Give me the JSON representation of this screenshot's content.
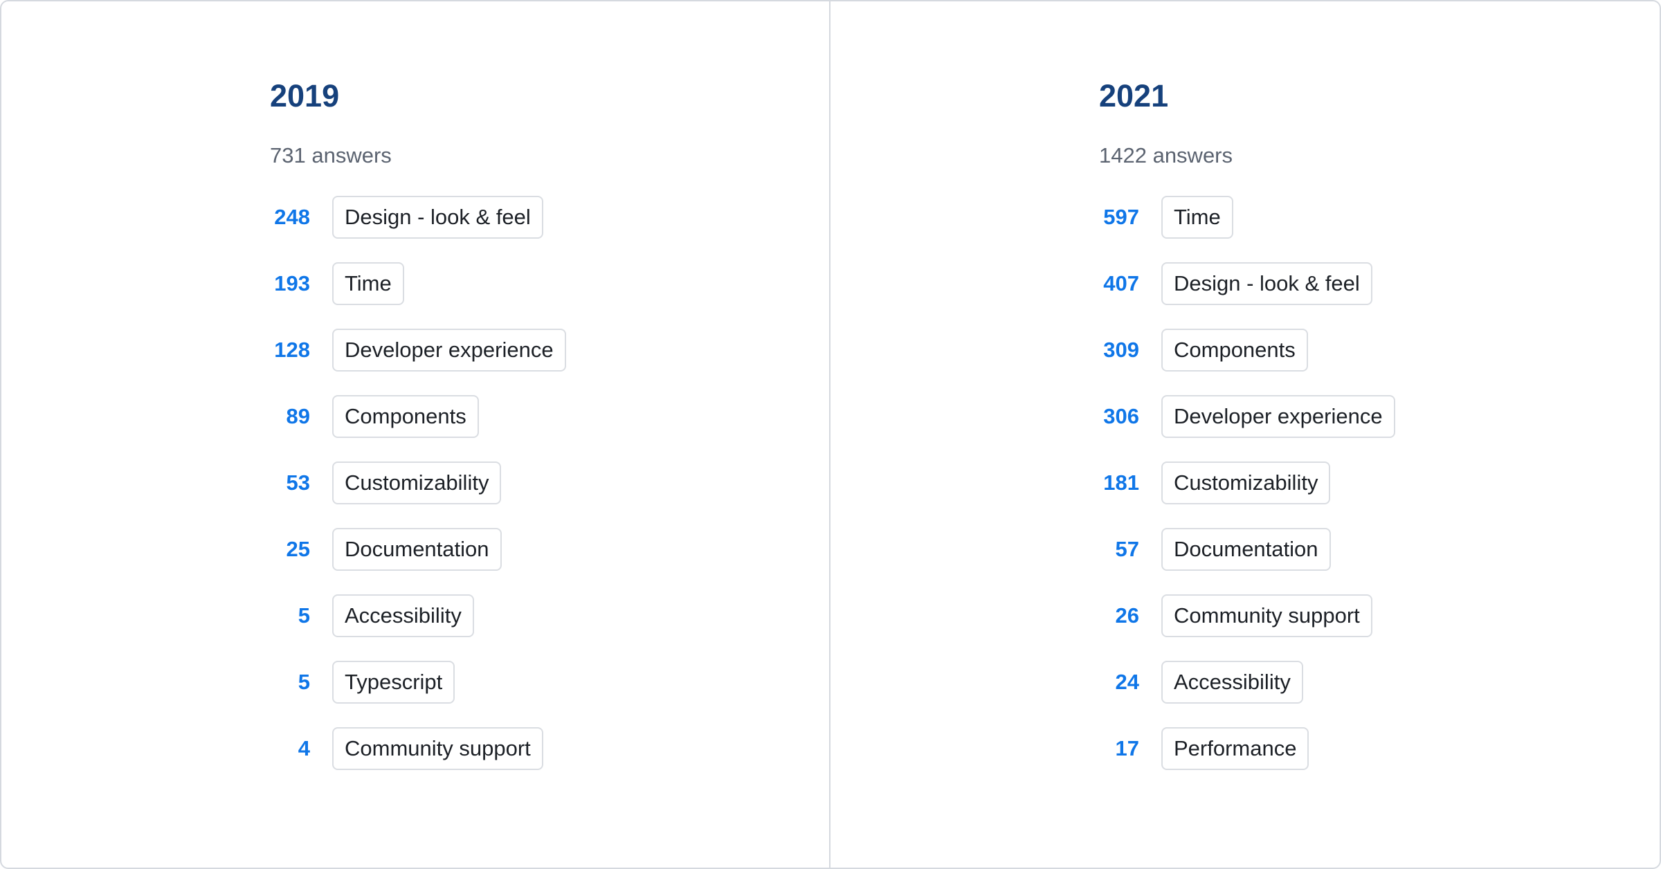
{
  "colors": {
    "year_heading": "#16417c",
    "count_number": "#0f76e8",
    "answers_text": "#5b6370",
    "card_border": "#d5d9df",
    "chip_border": "#dadde2",
    "chip_text": "#1c2026"
  },
  "columns": [
    {
      "year": "2019",
      "answers_label": "731 answers",
      "items": [
        {
          "count": "248",
          "label": "Design - look & feel"
        },
        {
          "count": "193",
          "label": "Time"
        },
        {
          "count": "128",
          "label": "Developer experience"
        },
        {
          "count": "89",
          "label": "Components"
        },
        {
          "count": "53",
          "label": "Customizability"
        },
        {
          "count": "25",
          "label": "Documentation"
        },
        {
          "count": "5",
          "label": "Accessibility"
        },
        {
          "count": "5",
          "label": "Typescript"
        },
        {
          "count": "4",
          "label": "Community support"
        }
      ]
    },
    {
      "year": "2021",
      "answers_label": "1422 answers",
      "items": [
        {
          "count": "597",
          "label": "Time"
        },
        {
          "count": "407",
          "label": "Design - look & feel"
        },
        {
          "count": "309",
          "label": "Components"
        },
        {
          "count": "306",
          "label": "Developer experience"
        },
        {
          "count": "181",
          "label": "Customizability"
        },
        {
          "count": "57",
          "label": "Documentation"
        },
        {
          "count": "26",
          "label": "Community support"
        },
        {
          "count": "24",
          "label": "Accessibility"
        },
        {
          "count": "17",
          "label": "Performance"
        }
      ]
    }
  ],
  "chart_data": [
    {
      "type": "table",
      "title": "2019",
      "subtitle": "731 answers",
      "categories": [
        "Design - look & feel",
        "Time",
        "Developer experience",
        "Components",
        "Customizability",
        "Documentation",
        "Accessibility",
        "Typescript",
        "Community support"
      ],
      "values": [
        248,
        193,
        128,
        89,
        53,
        25,
        5,
        5,
        4
      ]
    },
    {
      "type": "table",
      "title": "2021",
      "subtitle": "1422 answers",
      "categories": [
        "Time",
        "Design - look & feel",
        "Components",
        "Developer experience",
        "Customizability",
        "Documentation",
        "Community support",
        "Accessibility",
        "Performance"
      ],
      "values": [
        597,
        407,
        309,
        306,
        181,
        57,
        26,
        24,
        17
      ]
    }
  ]
}
